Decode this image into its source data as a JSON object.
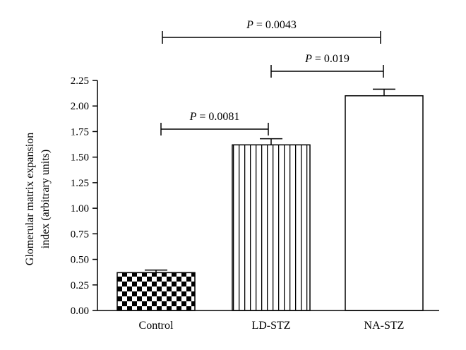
{
  "chart_data": {
    "type": "bar",
    "categories": [
      "Control",
      "LD-STZ",
      "NA-STZ"
    ],
    "values": [
      0.37,
      1.62,
      2.1
    ],
    "errors": [
      0.025,
      0.06,
      0.065
    ],
    "ylabel_line1": "Glomerular matrix expansion",
    "ylabel_line2": "index (arbitrary units)",
    "ylim": [
      0,
      2.25
    ],
    "yticks": [
      "0.00",
      "0.25",
      "0.50",
      "0.75",
      "1.00",
      "1.25",
      "1.50",
      "1.75",
      "2.00",
      "2.25"
    ],
    "bar_patterns": [
      "checkerboard",
      "vertical-stripes",
      "solid-white"
    ],
    "comparisons": [
      {
        "from": "Control",
        "to": "LD-STZ",
        "p_symbol": "P",
        "p_text": " = 0.0081"
      },
      {
        "from": "LD-STZ",
        "to": "NA-STZ",
        "p_symbol": "P",
        "p_text": " = 0.019"
      },
      {
        "from": "Control",
        "to": "NA-STZ",
        "p_symbol": "P",
        "p_text": " = 0.0043"
      }
    ],
    "grid": false
  }
}
